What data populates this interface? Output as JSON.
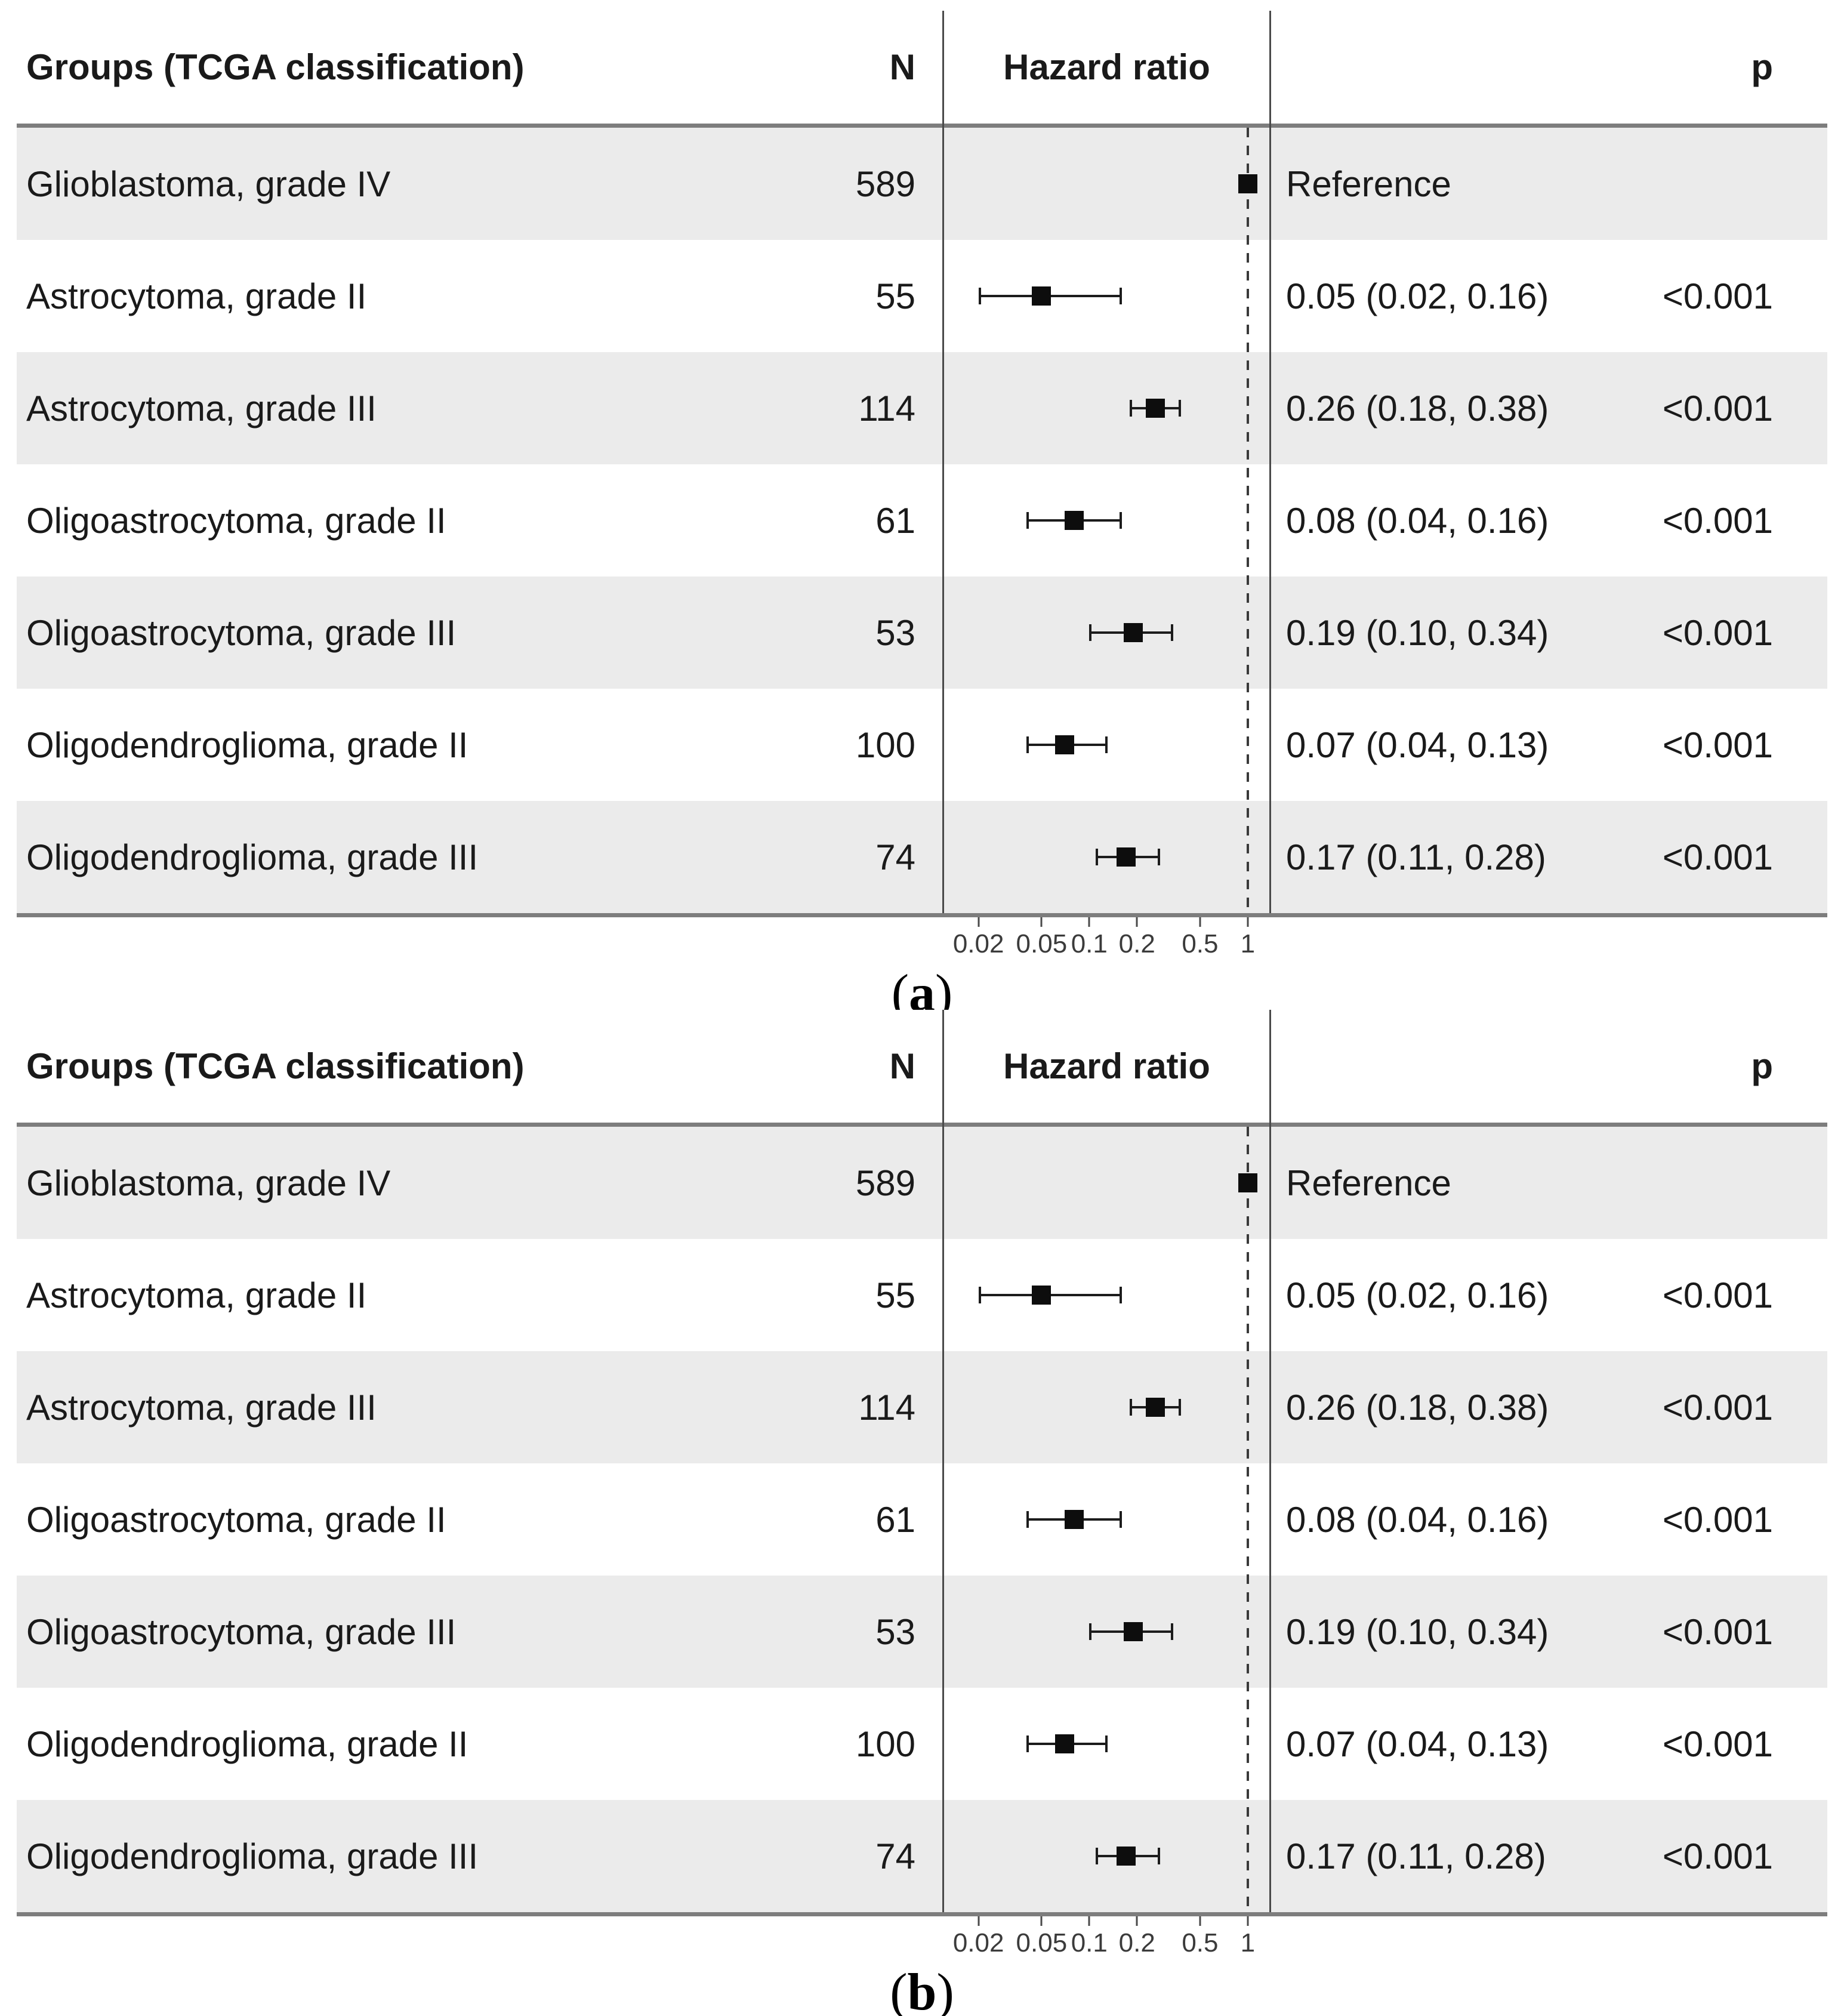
{
  "figure": {
    "kind": "forest-plot",
    "panel_count": 2
  },
  "colors": {
    "row_stripe": "#ebebeb",
    "row_plain": "#ffffff",
    "heavy_rule": "#7d7d7d",
    "vertical_rule": "#4a4a4a",
    "reference_dash": "#3a3a3a",
    "marker": "#0d0d0d",
    "text": "#1a1a1a",
    "axis_text": "#3b3b3b"
  },
  "panels": [
    {
      "label_open": "(",
      "label_letter": "a",
      "label_close": ")",
      "header": {
        "group": "Groups (TCGA classification)",
        "n": "N",
        "hazard": "Hazard ratio",
        "estimate": "",
        "p": "p"
      },
      "axis_ticks": [
        "0.02",
        "0.05",
        "0.1",
        "0.2",
        "0.5",
        "1"
      ],
      "reference_value": 1,
      "rows": [
        {
          "group": "Glioblastoma, grade IV",
          "n": "589",
          "hr": 1,
          "ci_low": null,
          "ci_high": null,
          "estimate": "Reference",
          "p": ""
        },
        {
          "group": "Astrocytoma, grade II",
          "n": "55",
          "hr": 0.05,
          "ci_low": 0.02,
          "ci_high": 0.16,
          "estimate": "0.05 (0.02, 0.16)",
          "p": "<0.001"
        },
        {
          "group": "Astrocytoma, grade III",
          "n": "114",
          "hr": 0.26,
          "ci_low": 0.18,
          "ci_high": 0.38,
          "estimate": "0.26 (0.18, 0.38)",
          "p": "<0.001"
        },
        {
          "group": "Oligoastrocytoma, grade II",
          "n": "61",
          "hr": 0.08,
          "ci_low": 0.04,
          "ci_high": 0.16,
          "estimate": "0.08 (0.04, 0.16)",
          "p": "<0.001"
        },
        {
          "group": "Oligoastrocytoma, grade III",
          "n": "53",
          "hr": 0.19,
          "ci_low": 0.1,
          "ci_high": 0.34,
          "estimate": "0.19 (0.10, 0.34)",
          "p": "<0.001"
        },
        {
          "group": "Oligodendroglioma, grade II",
          "n": "100",
          "hr": 0.07,
          "ci_low": 0.04,
          "ci_high": 0.13,
          "estimate": "0.07 (0.04, 0.13)",
          "p": "<0.001"
        },
        {
          "group": "Oligodendroglioma, grade III",
          "n": "74",
          "hr": 0.17,
          "ci_low": 0.11,
          "ci_high": 0.28,
          "estimate": "0.17 (0.11, 0.28)",
          "p": "<0.001"
        }
      ]
    },
    {
      "label_open": "(",
      "label_letter": "b",
      "label_close": ")",
      "header": {
        "group": "Groups (TCGA classification)",
        "n": "N",
        "hazard": "Hazard ratio",
        "estimate": "",
        "p": "p"
      },
      "axis_ticks": [
        "0.02",
        "0.05",
        "0.1",
        "0.2",
        "0.5",
        "1"
      ],
      "reference_value": 1,
      "rows": [
        {
          "group": "Glioblastoma, grade IV",
          "n": "589",
          "hr": 1,
          "ci_low": null,
          "ci_high": null,
          "estimate": "Reference",
          "p": ""
        },
        {
          "group": "Astrocytoma, grade II",
          "n": "55",
          "hr": 0.05,
          "ci_low": 0.02,
          "ci_high": 0.16,
          "estimate": "0.05 (0.02, 0.16)",
          "p": "<0.001"
        },
        {
          "group": "Astrocytoma, grade III",
          "n": "114",
          "hr": 0.26,
          "ci_low": 0.18,
          "ci_high": 0.38,
          "estimate": "0.26 (0.18, 0.38)",
          "p": "<0.001"
        },
        {
          "group": "Oligoastrocytoma, grade II",
          "n": "61",
          "hr": 0.08,
          "ci_low": 0.04,
          "ci_high": 0.16,
          "estimate": "0.08 (0.04, 0.16)",
          "p": "<0.001"
        },
        {
          "group": "Oligoastrocytoma, grade III",
          "n": "53",
          "hr": 0.19,
          "ci_low": 0.1,
          "ci_high": 0.34,
          "estimate": "0.19 (0.10, 0.34)",
          "p": "<0.001"
        },
        {
          "group": "Oligodendroglioma, grade II",
          "n": "100",
          "hr": 0.07,
          "ci_low": 0.04,
          "ci_high": 0.13,
          "estimate": "0.07 (0.04, 0.13)",
          "p": "<0.001"
        },
        {
          "group": "Oligodendroglioma, grade III",
          "n": "74",
          "hr": 0.17,
          "ci_low": 0.11,
          "ci_high": 0.28,
          "estimate": "0.17 (0.11, 0.28)",
          "p": "<0.001"
        }
      ]
    }
  ],
  "chart_data": [
    {
      "type": "scatter",
      "variant": "forest-plot",
      "panel_label": "(a)",
      "column_headers": [
        "Groups (TCGA classification)",
        "N",
        "Hazard ratio",
        "p"
      ],
      "x_scale": "log",
      "x_ticks": [
        0.02,
        0.05,
        0.1,
        0.2,
        0.5,
        1
      ],
      "reference_line_x": 1,
      "legend": "none",
      "grid": "off",
      "rows": [
        {
          "group": "Glioblastoma, grade IV",
          "n": 589,
          "hr": 1.0,
          "ci": null,
          "estimate_text": "Reference",
          "p": null
        },
        {
          "group": "Astrocytoma, grade II",
          "n": 55,
          "hr": 0.05,
          "ci": [
            0.02,
            0.16
          ],
          "estimate_text": "0.05 (0.02, 0.16)",
          "p": "<0.001"
        },
        {
          "group": "Astrocytoma, grade III",
          "n": 114,
          "hr": 0.26,
          "ci": [
            0.18,
            0.38
          ],
          "estimate_text": "0.26 (0.18, 0.38)",
          "p": "<0.001"
        },
        {
          "group": "Oligoastrocytoma, grade II",
          "n": 61,
          "hr": 0.08,
          "ci": [
            0.04,
            0.16
          ],
          "estimate_text": "0.08 (0.04, 0.16)",
          "p": "<0.001"
        },
        {
          "group": "Oligoastrocytoma, grade III",
          "n": 53,
          "hr": 0.19,
          "ci": [
            0.1,
            0.34
          ],
          "estimate_text": "0.19 (0.10, 0.34)",
          "p": "<0.001"
        },
        {
          "group": "Oligodendroglioma, grade II",
          "n": 100,
          "hr": 0.07,
          "ci": [
            0.04,
            0.13
          ],
          "estimate_text": "0.07 (0.04, 0.13)",
          "p": "<0.001"
        },
        {
          "group": "Oligodendroglioma, grade III",
          "n": 74,
          "hr": 0.17,
          "ci": [
            0.11,
            0.28
          ],
          "estimate_text": "0.17 (0.11, 0.28)",
          "p": "<0.001"
        }
      ]
    },
    {
      "type": "scatter",
      "variant": "forest-plot",
      "panel_label": "(b)",
      "column_headers": [
        "Groups (TCGA classification)",
        "N",
        "Hazard ratio",
        "p"
      ],
      "x_scale": "log",
      "x_ticks": [
        0.02,
        0.05,
        0.1,
        0.2,
        0.5,
        1
      ],
      "reference_line_x": 1,
      "legend": "none",
      "grid": "off",
      "rows": [
        {
          "group": "Glioblastoma, grade IV",
          "n": 589,
          "hr": 1.0,
          "ci": null,
          "estimate_text": "Reference",
          "p": null
        },
        {
          "group": "Astrocytoma, grade II",
          "n": 55,
          "hr": 0.05,
          "ci": [
            0.02,
            0.16
          ],
          "estimate_text": "0.05 (0.02, 0.16)",
          "p": "<0.001"
        },
        {
          "group": "Astrocytoma, grade III",
          "n": 114,
          "hr": 0.26,
          "ci": [
            0.18,
            0.38
          ],
          "estimate_text": "0.26 (0.18, 0.38)",
          "p": "<0.001"
        },
        {
          "group": "Oligoastrocytoma, grade II",
          "n": 61,
          "hr": 0.08,
          "ci": [
            0.04,
            0.16
          ],
          "estimate_text": "0.08 (0.04, 0.16)",
          "p": "<0.001"
        },
        {
          "group": "Oligoastrocytoma, grade III",
          "n": 53,
          "hr": 0.19,
          "ci": [
            0.1,
            0.34
          ],
          "estimate_text": "0.19 (0.10, 0.34)",
          "p": "<0.001"
        },
        {
          "group": "Oligodendroglioma, grade II",
          "n": 100,
          "hr": 0.07,
          "ci": [
            0.04,
            0.13
          ],
          "estimate_text": "0.07 (0.04, 0.13)",
          "p": "<0.001"
        },
        {
          "group": "Oligodendroglioma, grade III",
          "n": 74,
          "hr": 0.17,
          "ci": [
            0.11,
            0.28
          ],
          "estimate_text": "0.17 (0.11, 0.28)",
          "p": "<0.001"
        }
      ]
    }
  ]
}
